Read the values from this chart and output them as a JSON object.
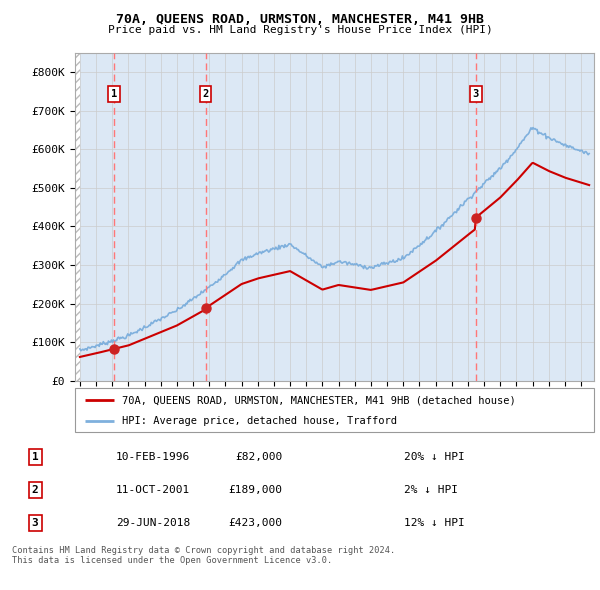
{
  "title1": "70A, QUEENS ROAD, URMSTON, MANCHESTER, M41 9HB",
  "title2": "Price paid vs. HM Land Registry's House Price Index (HPI)",
  "ylim": [
    0,
    850000
  ],
  "yticks": [
    0,
    100000,
    200000,
    300000,
    400000,
    500000,
    600000,
    700000,
    800000
  ],
  "ytick_labels": [
    "£0",
    "£100K",
    "£200K",
    "£300K",
    "£400K",
    "£500K",
    "£600K",
    "£700K",
    "£800K"
  ],
  "sale_dates": [
    1996.11,
    2001.78,
    2018.49
  ],
  "sale_prices": [
    82000,
    189000,
    423000
  ],
  "sale_labels": [
    "1",
    "2",
    "3"
  ],
  "legend_line1": "70A, QUEENS ROAD, URMSTON, MANCHESTER, M41 9HB (detached house)",
  "legend_line2": "HPI: Average price, detached house, Trafford",
  "table_rows": [
    [
      "1",
      "10-FEB-1996",
      "£82,000",
      "20% ↓ HPI"
    ],
    [
      "2",
      "11-OCT-2001",
      "£189,000",
      "2% ↓ HPI"
    ],
    [
      "3",
      "29-JUN-2018",
      "£423,000",
      "12% ↓ HPI"
    ]
  ],
  "footnote": "Contains HM Land Registry data © Crown copyright and database right 2024.\nThis data is licensed under the Open Government Licence v3.0.",
  "grid_color": "#cccccc",
  "bg_plot": "#dce8f5",
  "line_color_red": "#cc0000",
  "line_color_blue": "#7fb0dd",
  "dashed_color": "#ff7777"
}
